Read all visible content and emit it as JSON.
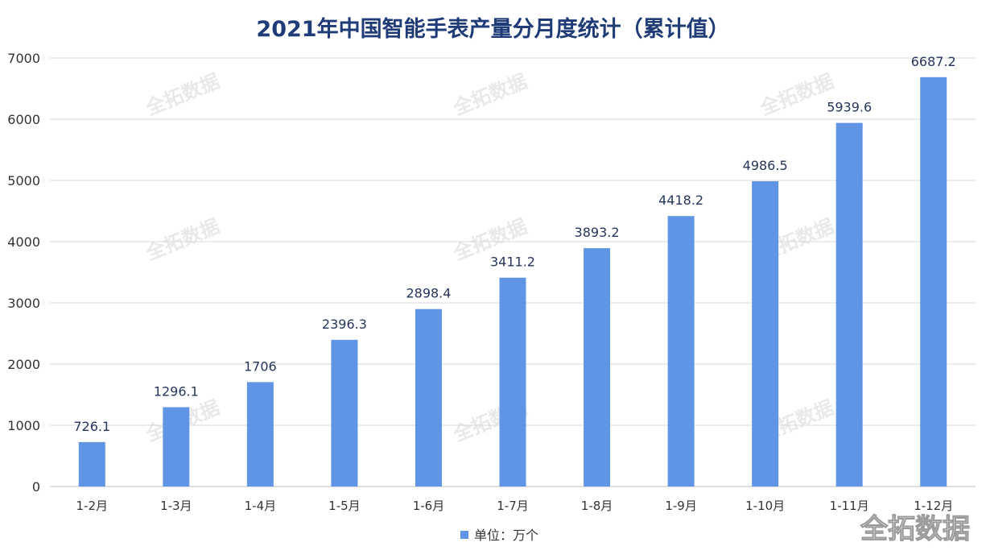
{
  "chart_data": {
    "type": "bar",
    "title": "2021年中国智能手表产量分月度统计（累计值）",
    "categories": [
      "1-2月",
      "1-3月",
      "1-4月",
      "1-5月",
      "1-6月",
      "1-7月",
      "1-8月",
      "1-9月",
      "1-10月",
      "1-11月",
      "1-12月"
    ],
    "values": [
      726.1,
      1296.1,
      1706,
      2396.3,
      2898.4,
      3411.2,
      3893.2,
      4418.2,
      4986.5,
      5939.6,
      6687.2
    ],
    "value_labels": [
      "726.1",
      "1296.1",
      "1706",
      "2396.3",
      "2898.4",
      "3411.2",
      "3893.2",
      "4418.2",
      "4986.5",
      "5939.6",
      "6687.2"
    ],
    "ylim": [
      0,
      7000
    ],
    "yticks": [
      0,
      1000,
      2000,
      3000,
      4000,
      5000,
      6000,
      7000
    ],
    "grid": true,
    "legend": {
      "label": "单位：万个",
      "placement": "bottom-center"
    },
    "bar_color": "#6095e5"
  },
  "watermark": {
    "text": "全拓数据"
  }
}
